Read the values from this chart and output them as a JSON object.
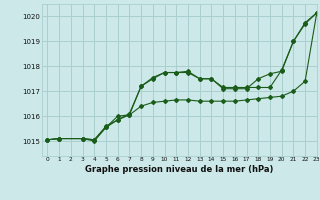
{
  "title": "Graphe pression niveau de la mer (hPa)",
  "bg_color": "#cce8e8",
  "grid_color": "#aacfcf",
  "line_color": "#1a5c1a",
  "xlim": [
    -0.5,
    23
  ],
  "ylim": [
    1014.4,
    1020.5
  ],
  "yticks": [
    1015,
    1016,
    1017,
    1018,
    1019,
    1020
  ],
  "xticks": [
    0,
    1,
    2,
    3,
    4,
    5,
    6,
    7,
    8,
    9,
    10,
    11,
    12,
    13,
    14,
    15,
    16,
    17,
    18,
    19,
    20,
    21,
    22,
    23
  ],
  "series1": [
    1015.05,
    1015.1,
    null,
    1015.1,
    1015.05,
    1015.55,
    1016.0,
    1016.05,
    1017.2,
    1017.5,
    1017.75,
    1017.75,
    1017.8,
    1017.5,
    1017.5,
    1017.1,
    1017.1,
    1017.1,
    1017.5,
    1017.7,
    1017.8,
    1019.0,
    1019.7,
    1020.15
  ],
  "series2": [
    1015.05,
    1015.1,
    null,
    1015.1,
    1015.05,
    1015.6,
    1015.85,
    1016.1,
    1017.2,
    1017.55,
    1017.75,
    1017.75,
    1017.75,
    1017.5,
    1017.5,
    1017.15,
    1017.15,
    1017.15,
    1017.15,
    1017.15,
    1017.85,
    1019.0,
    1019.75,
    1020.15
  ],
  "series3": [
    1015.05,
    1015.1,
    null,
    1015.1,
    1015.0,
    1015.55,
    1015.85,
    1016.05,
    1016.4,
    1016.55,
    1016.6,
    1016.65,
    1016.65,
    1016.6,
    1016.6,
    1016.6,
    1016.6,
    1016.65,
    1016.7,
    1016.75,
    1016.8,
    1017.0,
    1017.4,
    1020.15
  ]
}
